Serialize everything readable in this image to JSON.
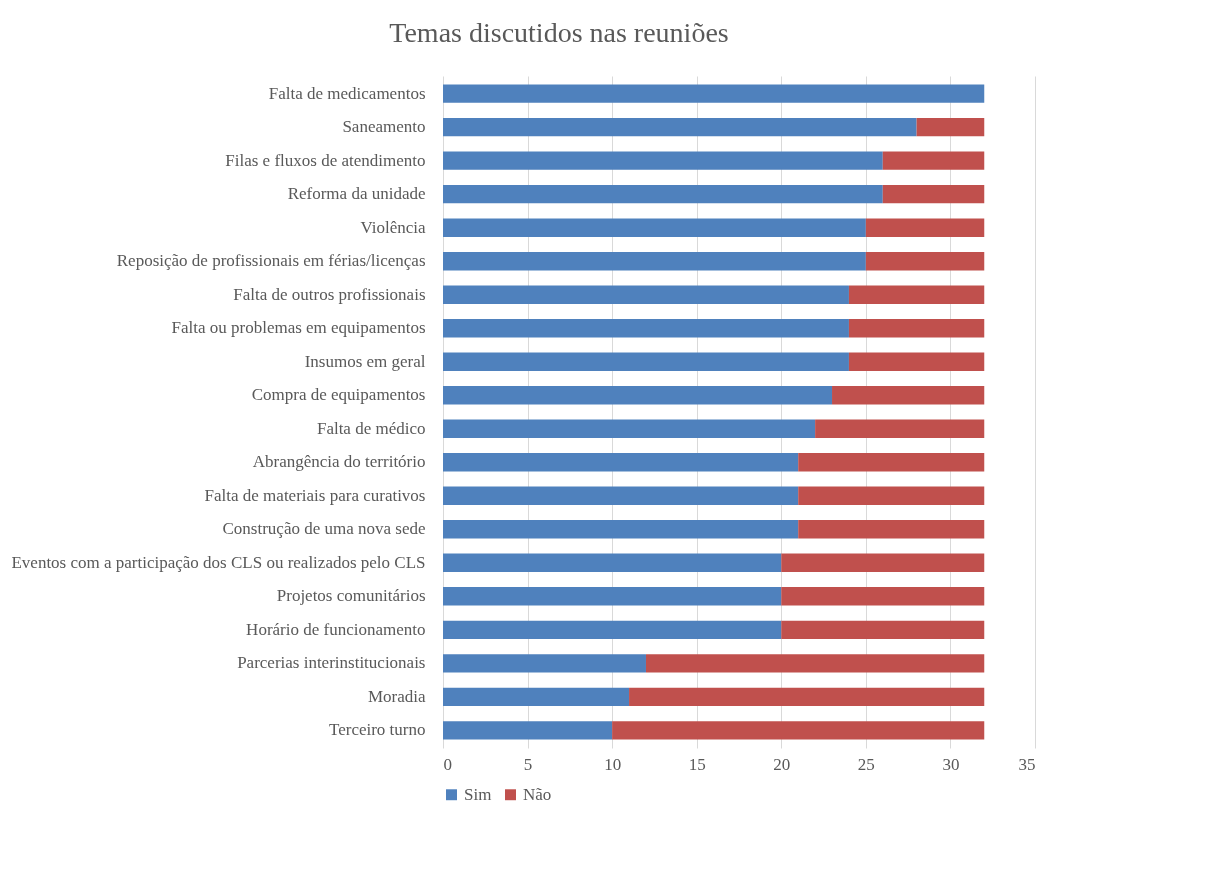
{
  "chart_data": {
    "type": "bar",
    "orientation": "horizontal",
    "stacked": true,
    "title": "Temas discutidos nas reuniões",
    "categories": [
      "Falta de medicamentos",
      "Saneamento",
      "Filas e fluxos de atendimento",
      "Reforma da unidade",
      "Violência",
      "Reposição de profissionais em férias/licenças",
      "Falta de outros profissionais",
      "Falta ou problemas em equipamentos",
      "Insumos em geral",
      "Compra de equipamentos",
      "Falta de médico",
      "Abrangência do território",
      "Falta de materiais para curativos",
      "Construção de uma nova sede",
      "Eventos com a participação dos CLS ou realizados pelo CLS",
      "Projetos comunitários",
      "Horário de funcionamento",
      "Parcerias interinstitucionais",
      "Moradia",
      "Terceiro turno"
    ],
    "series": [
      {
        "name": "Sim",
        "color": "#4f81bd",
        "values": [
          32,
          28,
          26,
          26,
          25,
          25,
          24,
          24,
          24,
          23,
          22,
          21,
          21,
          21,
          20,
          20,
          20,
          12,
          11,
          10
        ]
      },
      {
        "name": "Não",
        "color": "#c0504d",
        "values": [
          0,
          4,
          6,
          6,
          7,
          7,
          8,
          8,
          8,
          9,
          10,
          11,
          11,
          11,
          12,
          12,
          12,
          20,
          21,
          22
        ]
      }
    ],
    "xlim": [
      0,
      35
    ],
    "xticks": [
      0,
      5,
      10,
      15,
      20,
      25,
      30,
      35
    ],
    "grid": "x",
    "legend": "bottom"
  }
}
